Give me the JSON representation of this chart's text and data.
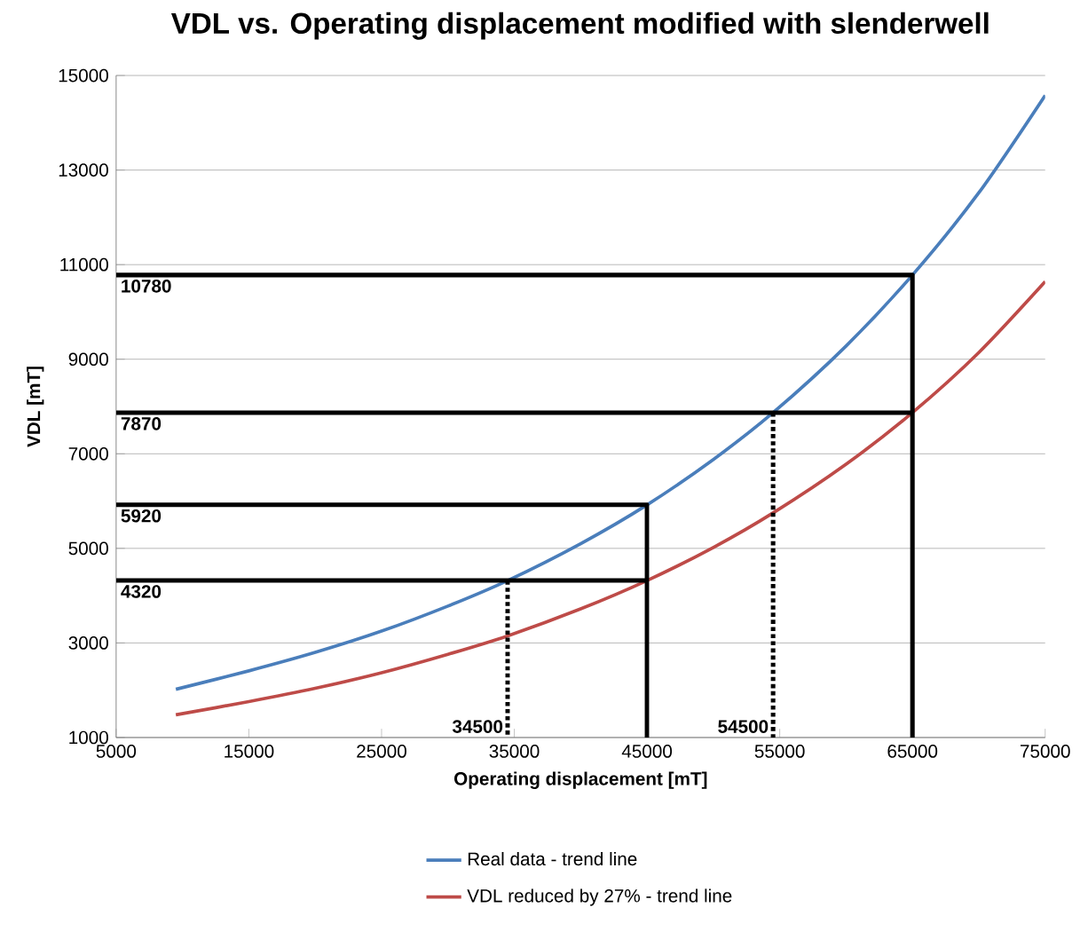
{
  "chart_data": {
    "type": "line",
    "title": "VDL vs. Operating displacement modified with slenderwell",
    "xlabel": "Operating displacement [mT]",
    "ylabel": "VDL [mT]",
    "xlim": [
      5000,
      75000
    ],
    "xticks": [
      5000,
      15000,
      25000,
      35000,
      45000,
      55000,
      65000,
      75000
    ],
    "ylim": [
      1000,
      15000
    ],
    "yticks": [
      1000,
      3000,
      5000,
      7000,
      9000,
      11000,
      13000,
      15000
    ],
    "grid": "y",
    "legend": "bottom",
    "series": [
      {
        "name": "Real data - trend line",
        "color": "#4a7ebb",
        "x": [
          9500,
          15000,
          20000,
          25000,
          30000,
          34500,
          40000,
          45000,
          50000,
          54500,
          60000,
          65000,
          70000,
          75000
        ],
        "values": [
          2020,
          2410,
          2800,
          3250,
          3780,
          4320,
          5100,
          5920,
          6880,
          7870,
          9280,
          10780,
          12520,
          14580
        ]
      },
      {
        "name": "VDL reduced by 27% - trend line",
        "color": "#be4b48",
        "x": [
          9500,
          15000,
          20000,
          25000,
          30000,
          34500,
          40000,
          45000,
          50000,
          54500,
          60000,
          65000,
          70000,
          75000
        ],
        "values": [
          1480,
          1760,
          2040,
          2370,
          2760,
          3150,
          3720,
          4320,
          5020,
          5750,
          6780,
          7870,
          9140,
          10640
        ]
      },
      {
        "color": "#000000",
        "line_style": "solid",
        "x": [
          5000,
          65000,
          65000
        ],
        "values": [
          10780,
          10780,
          1000
        ]
      },
      {
        "color": "#000000",
        "line_style": "solid",
        "x": [
          5000,
          65000
        ],
        "values": [
          7870,
          7870
        ]
      },
      {
        "color": "#000000",
        "line_style": "dotted",
        "x": [
          54500,
          54500
        ],
        "values": [
          7870,
          1000
        ]
      },
      {
        "color": "#000000",
        "line_style": "solid",
        "x": [
          5000,
          45000,
          45000
        ],
        "values": [
          5920,
          5920,
          1000
        ]
      },
      {
        "color": "#000000",
        "line_style": "solid",
        "x": [
          5000,
          45000
        ],
        "values": [
          4320,
          4320
        ]
      },
      {
        "color": "#000000",
        "line_style": "dotted",
        "x": [
          34500,
          34500
        ],
        "values": [
          4320,
          1000
        ]
      }
    ],
    "annotations": [
      {
        "text": "10780",
        "x": 5000,
        "y": 10780
      },
      {
        "text": "7870",
        "x": 5000,
        "y": 7870
      },
      {
        "text": "5920",
        "x": 5000,
        "y": 5920
      },
      {
        "text": "4320",
        "x": 5000,
        "y": 4320
      },
      {
        "text": "34500",
        "x": 34500,
        "y": 1000
      },
      {
        "text": "54500",
        "x": 54500,
        "y": 1000
      }
    ]
  }
}
